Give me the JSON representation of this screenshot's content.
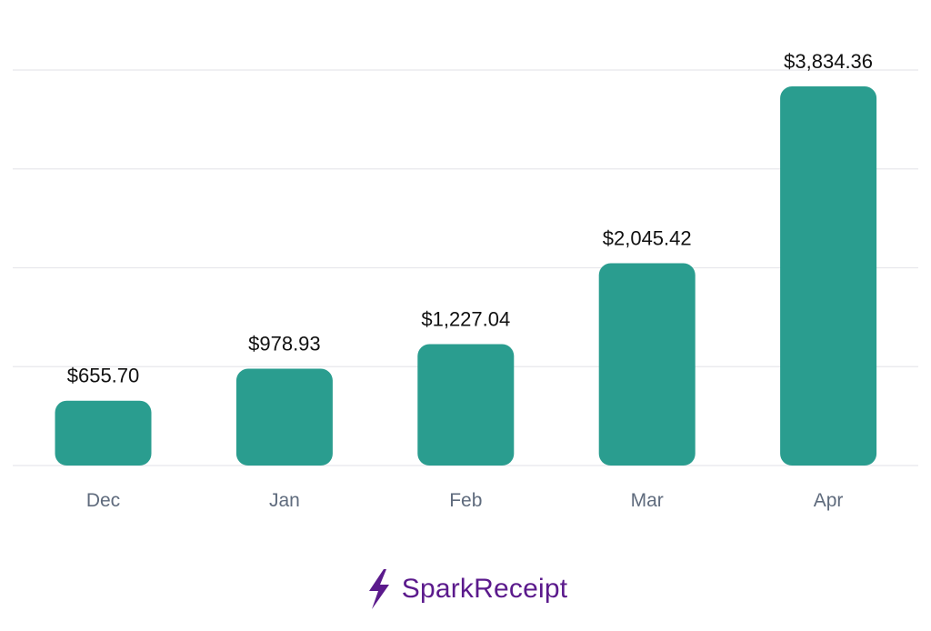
{
  "chart_data": {
    "type": "bar",
    "categories": [
      "Dec",
      "Jan",
      "Feb",
      "Mar",
      "Apr"
    ],
    "values": [
      655.7,
      978.93,
      1227.04,
      2045.42,
      3834.36
    ],
    "data_labels": [
      "$655.70",
      "$978.93",
      "$1,227.04",
      "$2,045.42",
      "$3,834.36"
    ],
    "ylim": [
      0,
      4000
    ],
    "grid": true,
    "bar_color": "#2a9d8f",
    "gridline_color": "#e8e8ec"
  },
  "brand": {
    "name": "SparkReceipt",
    "icon": "lightning-bolt-icon",
    "color": "#5b1a8c"
  }
}
